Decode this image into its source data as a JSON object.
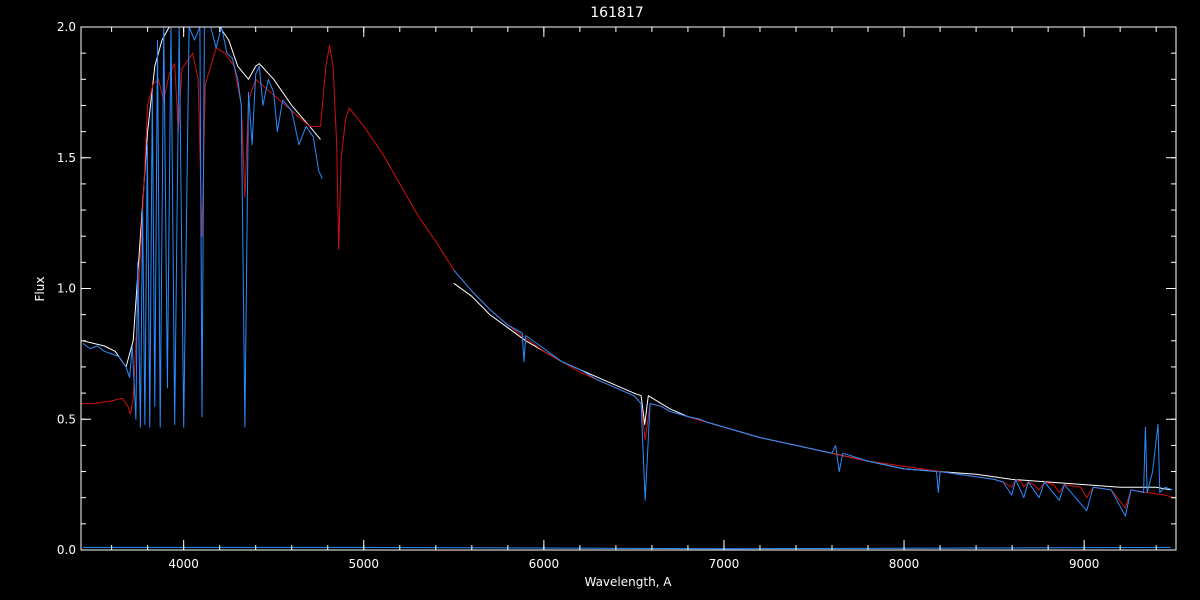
{
  "chart_data": {
    "type": "line",
    "title": "161817",
    "xlabel": "Wavelength, A",
    "ylabel": "Flux",
    "xlim": [
      3430,
      9510
    ],
    "ylim": [
      0,
      2.0
    ],
    "grid": false,
    "background_color": "#000000",
    "axis_color": "#ffffff",
    "x_ticks": [
      {
        "value": 4000,
        "label": "4000"
      },
      {
        "value": 5000,
        "label": "5000"
      },
      {
        "value": 6000,
        "label": "6000"
      },
      {
        "value": 7000,
        "label": "7000"
      },
      {
        "value": 8000,
        "label": "8000"
      },
      {
        "value": 9000,
        "label": "9000"
      }
    ],
    "y_ticks": [
      {
        "value": 0.0,
        "label": "0.0"
      },
      {
        "value": 0.5,
        "label": "0.5"
      },
      {
        "value": 1.0,
        "label": "1.0"
      },
      {
        "value": 1.5,
        "label": "1.5"
      },
      {
        "value": 2.0,
        "label": "2.0"
      }
    ],
    "x_minor_step": 200,
    "y_minor_step": 0.1,
    "series": [
      {
        "color": "#ffffff",
        "segments": [
          [
            [
              3440,
              0.8
            ],
            [
              3500,
              0.79
            ],
            [
              3560,
              0.78
            ],
            [
              3620,
              0.76
            ],
            [
              3680,
              0.7
            ],
            [
              3720,
              0.8
            ],
            [
              3740,
              1.0
            ],
            [
              3770,
              1.3
            ],
            [
              3800,
              1.6
            ],
            [
              3840,
              1.85
            ],
            [
              3880,
              1.95
            ],
            [
              3920,
              2.0
            ],
            [
              4000,
              2.0
            ],
            [
              4100,
              2.0
            ],
            [
              4200,
              2.0
            ],
            [
              4250,
              1.95
            ],
            [
              4300,
              1.85
            ],
            [
              4360,
              1.8
            ],
            [
              4400,
              1.85
            ],
            [
              4420,
              1.86
            ],
            [
              4500,
              1.8
            ],
            [
              4600,
              1.7
            ],
            [
              4700,
              1.62
            ],
            [
              4760,
              1.57
            ]
          ],
          [
            [
              5500,
              1.02
            ],
            [
              5600,
              0.97
            ],
            [
              5700,
              0.9
            ],
            [
              5800,
              0.85
            ],
            [
              5900,
              0.8
            ],
            [
              6000,
              0.76
            ],
            [
              6100,
              0.72
            ],
            [
              6200,
              0.69
            ],
            [
              6300,
              0.66
            ],
            [
              6400,
              0.63
            ],
            [
              6500,
              0.6
            ],
            [
              6540,
              0.59
            ],
            [
              6560,
              0.48
            ],
            [
              6580,
              0.59
            ],
            [
              6700,
              0.54
            ],
            [
              6800,
              0.51
            ],
            [
              6900,
              0.49
            ],
            [
              7000,
              0.47
            ],
            [
              7200,
              0.43
            ],
            [
              7400,
              0.4
            ],
            [
              7600,
              0.37
            ],
            [
              7800,
              0.34
            ],
            [
              8000,
              0.31
            ],
            [
              8200,
              0.3
            ],
            [
              8400,
              0.29
            ],
            [
              8600,
              0.27
            ],
            [
              8800,
              0.26
            ],
            [
              9000,
              0.25
            ],
            [
              9200,
              0.24
            ],
            [
              9400,
              0.24
            ],
            [
              9480,
              0.23
            ]
          ]
        ]
      },
      {
        "color": "#d01010",
        "segments": [
          [
            [
              3430,
              0.56
            ],
            [
              3500,
              0.56
            ],
            [
              3600,
              0.57
            ],
            [
              3660,
              0.58
            ],
            [
              3690,
              0.55
            ],
            [
              3705,
              0.52
            ],
            [
              3720,
              0.58
            ],
            [
              3750,
              1.0
            ],
            [
              3780,
              1.4
            ],
            [
              3800,
              1.7
            ],
            [
              3830,
              1.78
            ],
            [
              3860,
              1.8
            ],
            [
              3889,
              1.72
            ],
            [
              3920,
              1.82
            ],
            [
              3950,
              1.86
            ],
            [
              3970,
              1.6
            ],
            [
              3990,
              1.84
            ],
            [
              4050,
              1.9
            ],
            [
              4080,
              1.8
            ],
            [
              4102,
              1.2
            ],
            [
              4120,
              1.78
            ],
            [
              4180,
              1.92
            ],
            [
              4230,
              1.9
            ],
            [
              4280,
              1.85
            ],
            [
              4320,
              1.7
            ],
            [
              4340,
              1.35
            ],
            [
              4360,
              1.72
            ],
            [
              4400,
              1.8
            ],
            [
              4500,
              1.74
            ],
            [
              4600,
              1.68
            ],
            [
              4700,
              1.62
            ],
            [
              4760,
              1.62
            ],
            [
              4790,
              1.85
            ],
            [
              4810,
              1.93
            ],
            [
              4830,
              1.85
            ],
            [
              4850,
              1.55
            ],
            [
              4861,
              1.15
            ],
            [
              4875,
              1.5
            ],
            [
              4900,
              1.65
            ],
            [
              4920,
              1.69
            ],
            [
              5000,
              1.62
            ],
            [
              5100,
              1.52
            ],
            [
              5200,
              1.4
            ],
            [
              5300,
              1.28
            ],
            [
              5400,
              1.18
            ],
            [
              5500,
              1.07
            ],
            [
              5600,
              0.99
            ],
            [
              5700,
              0.92
            ],
            [
              5800,
              0.86
            ],
            [
              5900,
              0.81
            ],
            [
              6000,
              0.76
            ],
            [
              6100,
              0.72
            ],
            [
              6200,
              0.68
            ],
            [
              6300,
              0.65
            ],
            [
              6400,
              0.62
            ],
            [
              6500,
              0.59
            ],
            [
              6540,
              0.56
            ],
            [
              6563,
              0.42
            ],
            [
              6590,
              0.56
            ],
            [
              6650,
              0.55
            ],
            [
              6700,
              0.53
            ],
            [
              6800,
              0.51
            ],
            [
              6900,
              0.49
            ],
            [
              7000,
              0.47
            ],
            [
              7200,
              0.43
            ],
            [
              7400,
              0.4
            ],
            [
              7600,
              0.37
            ],
            [
              7800,
              0.34
            ],
            [
              8000,
              0.32
            ],
            [
              8200,
              0.3
            ],
            [
              8400,
              0.28
            ],
            [
              8500,
              0.27
            ],
            [
              8550,
              0.26
            ],
            [
              8598,
              0.24
            ],
            [
              8620,
              0.27
            ],
            [
              8650,
              0.26
            ],
            [
              8665,
              0.24
            ],
            [
              8690,
              0.26
            ],
            [
              8720,
              0.25
            ],
            [
              8750,
              0.23
            ],
            [
              8780,
              0.26
            ],
            [
              8830,
              0.25
            ],
            [
              8862,
              0.22
            ],
            [
              8890,
              0.25
            ],
            [
              8980,
              0.24
            ],
            [
              9014,
              0.2
            ],
            [
              9050,
              0.24
            ],
            [
              9150,
              0.23
            ],
            [
              9229,
              0.16
            ],
            [
              9260,
              0.23
            ],
            [
              9350,
              0.22
            ],
            [
              9450,
              0.21
            ],
            [
              9500,
              0.2
            ]
          ]
        ]
      },
      {
        "color": "#2a8cff",
        "segments": [
          [
            [
              3440,
              0.79
            ],
            [
              3480,
              0.77
            ],
            [
              3520,
              0.78
            ],
            [
              3560,
              0.76
            ],
            [
              3600,
              0.75
            ],
            [
              3640,
              0.74
            ],
            [
              3680,
              0.7
            ],
            [
              3700,
              0.66
            ],
            [
              3715,
              0.78
            ],
            [
              3735,
              0.5
            ],
            [
              3745,
              1.1
            ],
            [
              3760,
              0.47
            ],
            [
              3772,
              1.3
            ],
            [
              3785,
              0.48
            ],
            [
              3798,
              1.55
            ],
            [
              3812,
              0.47
            ],
            [
              3826,
              1.75
            ],
            [
              3840,
              0.55
            ],
            [
              3855,
              1.95
            ],
            [
              3870,
              0.47
            ],
            [
              3890,
              2.0
            ],
            [
              3910,
              0.62
            ],
            [
              3930,
              2.0
            ],
            [
              3950,
              0.48
            ],
            [
              3975,
              2.0
            ],
            [
              4000,
              0.47
            ],
            [
              4030,
              2.0
            ],
            [
              4060,
              1.95
            ],
            [
              4090,
              2.0
            ],
            [
              4102,
              0.51
            ],
            [
              4115,
              2.0
            ],
            [
              4150,
              2.0
            ],
            [
              4180,
              1.92
            ],
            [
              4210,
              2.0
            ],
            [
              4240,
              1.9
            ],
            [
              4270,
              1.88
            ],
            [
              4300,
              1.8
            ],
            [
              4320,
              1.7
            ],
            [
              4340,
              0.47
            ],
            [
              4360,
              1.75
            ],
            [
              4380,
              1.55
            ],
            [
              4400,
              1.82
            ],
            [
              4420,
              1.85
            ],
            [
              4440,
              1.7
            ],
            [
              4470,
              1.8
            ],
            [
              4500,
              1.75
            ],
            [
              4520,
              1.6
            ],
            [
              4550,
              1.72
            ],
            [
              4600,
              1.68
            ],
            [
              4640,
              1.55
            ],
            [
              4680,
              1.62
            ],
            [
              4720,
              1.58
            ],
            [
              4750,
              1.45
            ],
            [
              4770,
              1.42
            ]
          ],
          [
            [
              5500,
              1.07
            ],
            [
              5600,
              0.99
            ],
            [
              5700,
              0.92
            ],
            [
              5800,
              0.86
            ],
            [
              5880,
              0.83
            ],
            [
              5890,
              0.72
            ],
            [
              5900,
              0.82
            ],
            [
              6000,
              0.77
            ],
            [
              6100,
              0.72
            ],
            [
              6200,
              0.69
            ],
            [
              6300,
              0.65
            ],
            [
              6400,
              0.62
            ],
            [
              6500,
              0.59
            ],
            [
              6540,
              0.56
            ],
            [
              6563,
              0.19
            ],
            [
              6590,
              0.56
            ],
            [
              6650,
              0.55
            ],
            [
              6700,
              0.53
            ],
            [
              6800,
              0.51
            ],
            [
              6870,
              0.5
            ],
            [
              6900,
              0.49
            ],
            [
              7000,
              0.47
            ],
            [
              7200,
              0.43
            ],
            [
              7400,
              0.4
            ],
            [
              7600,
              0.37
            ],
            [
              7620,
              0.4
            ],
            [
              7640,
              0.3
            ],
            [
              7660,
              0.37
            ],
            [
              7800,
              0.34
            ],
            [
              8000,
              0.31
            ],
            [
              8180,
              0.3
            ],
            [
              8190,
              0.22
            ],
            [
              8200,
              0.3
            ],
            [
              8400,
              0.28
            ],
            [
              8500,
              0.27
            ],
            [
              8550,
              0.26
            ],
            [
              8598,
              0.21
            ],
            [
              8620,
              0.27
            ],
            [
              8665,
              0.2
            ],
            [
              8690,
              0.26
            ],
            [
              8750,
              0.2
            ],
            [
              8780,
              0.26
            ],
            [
              8862,
              0.19
            ],
            [
              8890,
              0.25
            ],
            [
              9014,
              0.15
            ],
            [
              9050,
              0.24
            ],
            [
              9150,
              0.23
            ],
            [
              9229,
              0.13
            ],
            [
              9260,
              0.23
            ],
            [
              9330,
              0.22
            ],
            [
              9340,
              0.47
            ],
            [
              9350,
              0.22
            ],
            [
              9380,
              0.3
            ],
            [
              9410,
              0.48
            ],
            [
              9420,
              0.22
            ],
            [
              9450,
              0.24
            ],
            [
              9490,
              0.23
            ]
          ]
        ]
      },
      {
        "color": "#2a8cff",
        "segments": [
          [
            [
              3440,
              0.01
            ],
            [
              5000,
              0.01
            ],
            [
              7000,
              0.005
            ],
            [
              9480,
              0.01
            ]
          ]
        ]
      }
    ]
  }
}
